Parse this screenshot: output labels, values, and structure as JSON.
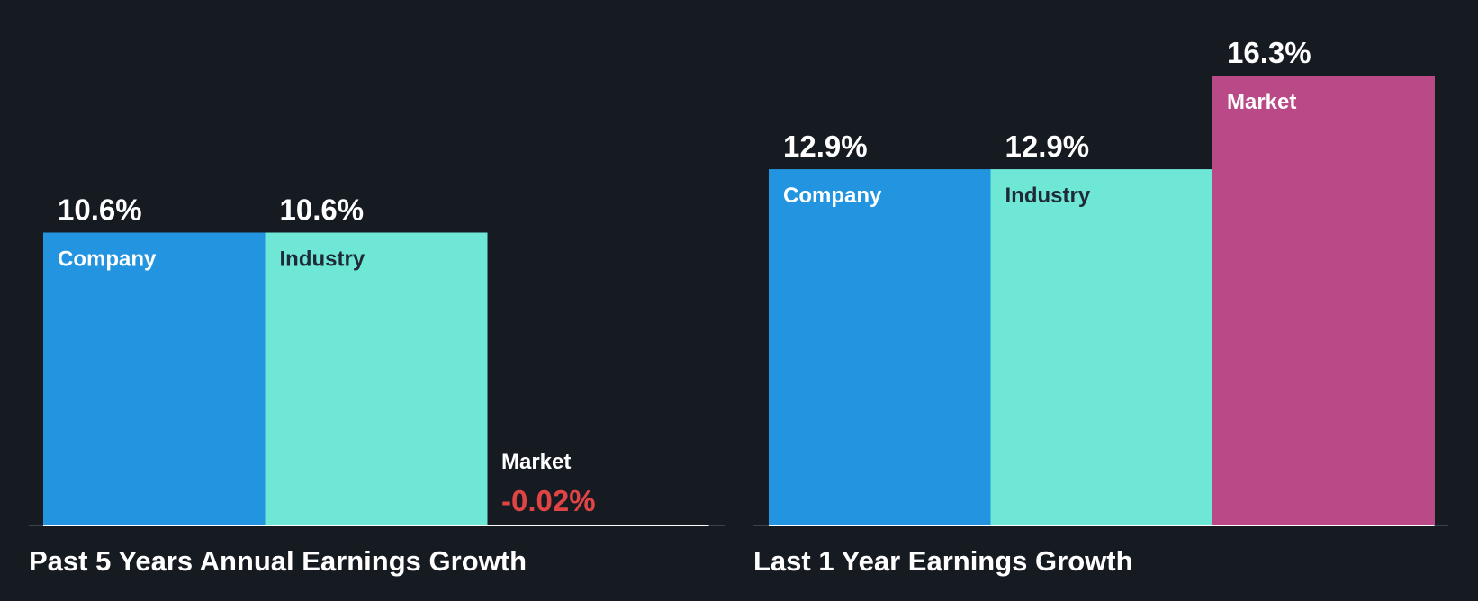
{
  "colors": {
    "background": "#161b22",
    "company": "#2394e0",
    "industry": "#6fe7d7",
    "market": "#ba4987",
    "negative": "#e14444",
    "axis": "#ffffff",
    "text_light": "#ffffff",
    "text_dark": "#1f2a36"
  },
  "chart_data": [
    {
      "type": "bar",
      "title": "Past 5 Years Annual Earnings Growth",
      "categories": [
        "Company",
        "Industry",
        "Market"
      ],
      "values": [
        10.6,
        10.6,
        -0.02
      ],
      "value_labels": [
        "10.6%",
        "10.6%",
        "-0.02%"
      ],
      "unit": "%",
      "ylim": [
        0,
        16.3
      ],
      "grid": false,
      "legend": "none"
    },
    {
      "type": "bar",
      "title": "Last 1 Year Earnings Growth",
      "categories": [
        "Company",
        "Industry",
        "Market"
      ],
      "values": [
        12.9,
        12.9,
        16.3
      ],
      "value_labels": [
        "12.9%",
        "12.9%",
        "16.3%"
      ],
      "unit": "%",
      "ylim": [
        0,
        16.3
      ],
      "grid": false,
      "legend": "none"
    }
  ]
}
